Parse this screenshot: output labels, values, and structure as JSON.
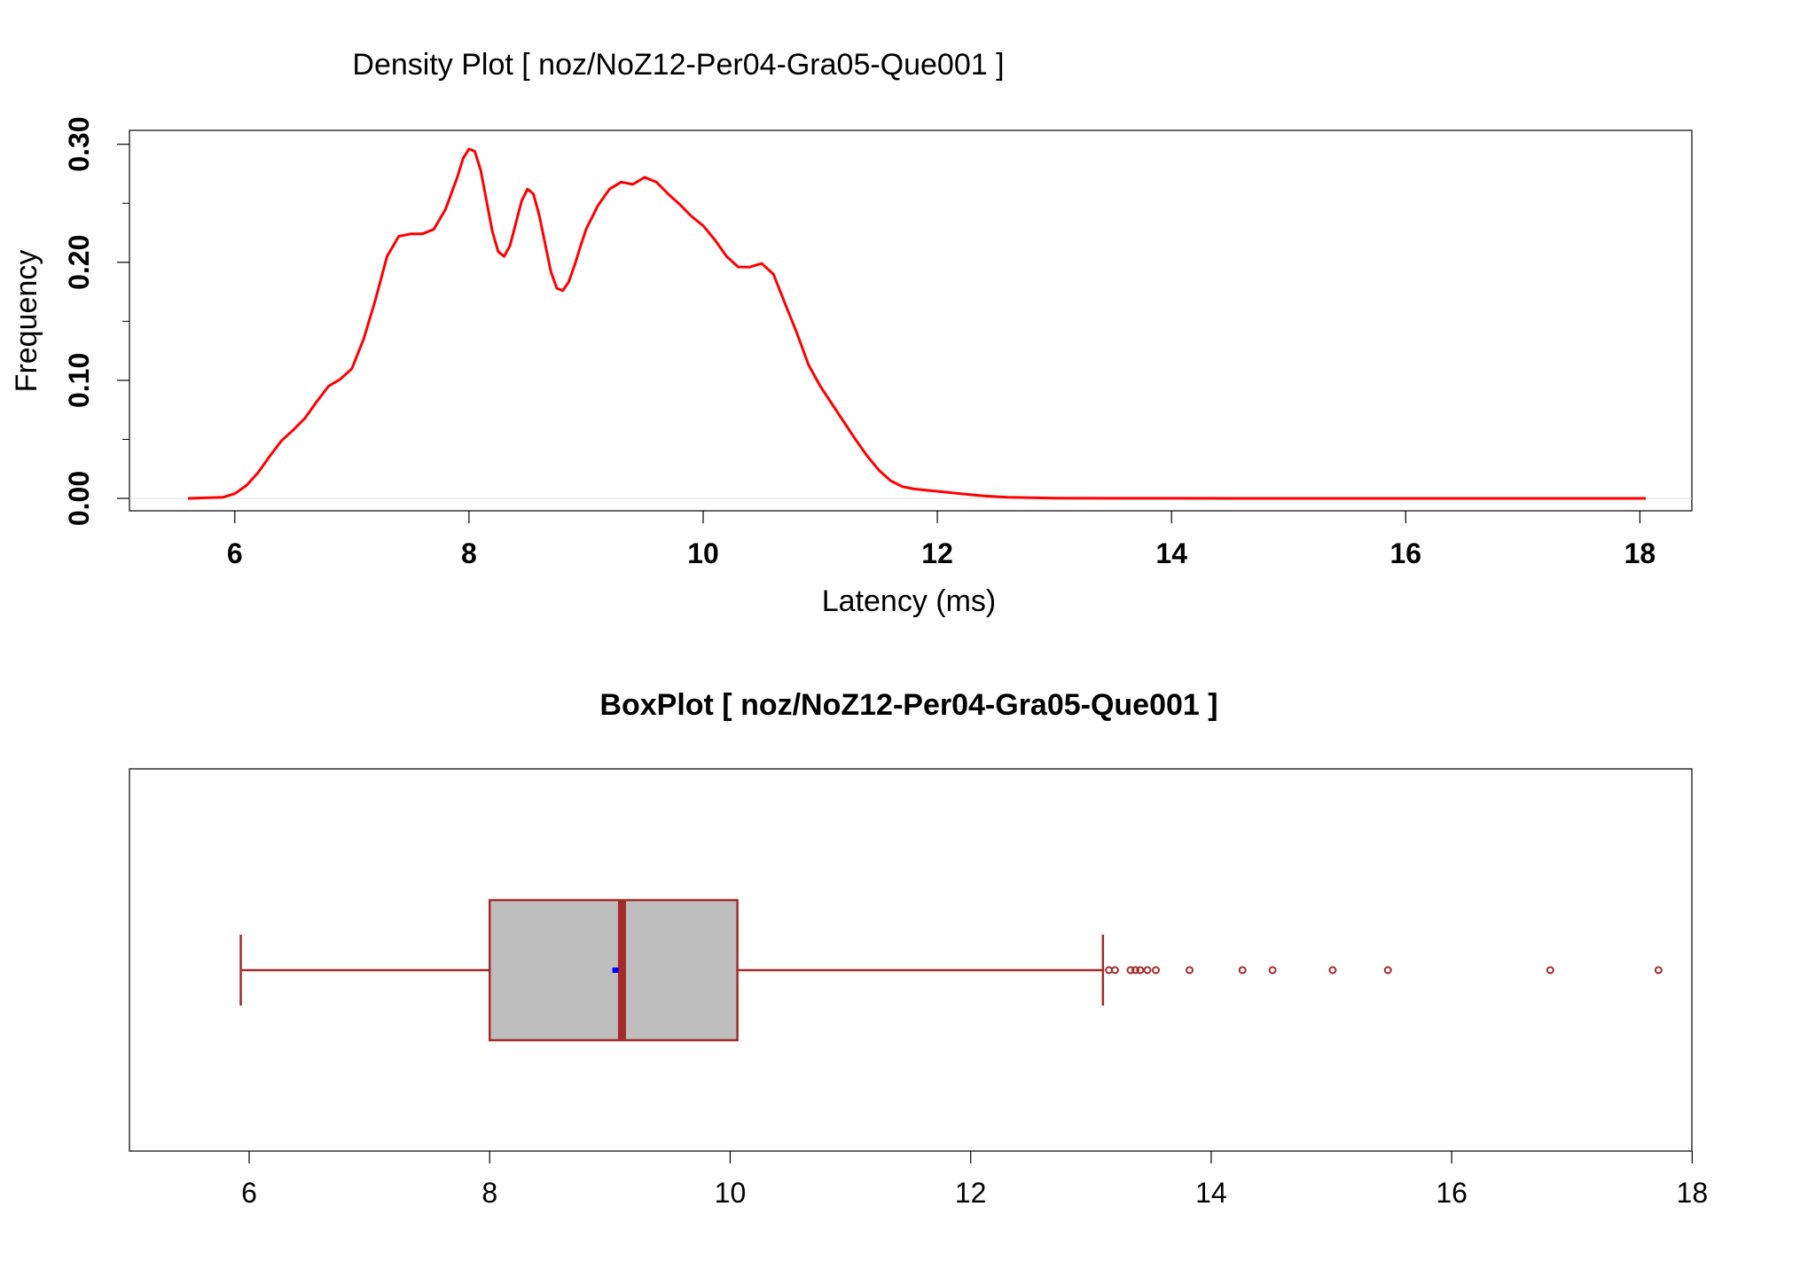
{
  "chart_data": [
    {
      "type": "line",
      "title": "Density Plot [ noz/NoZ12-Per04-Gra05-Que001 ]",
      "xlabel": "Latency (ms)",
      "ylabel": "Frequency",
      "xlim": [
        5.6,
        18.05
      ],
      "ylim": [
        0,
        0.305
      ],
      "x_ticks": [
        6,
        8,
        10,
        12,
        14,
        16,
        18
      ],
      "y_ticks": [
        0.0,
        0.1,
        0.2,
        0.3
      ],
      "y_tick_labels": [
        "0.00",
        "0.10",
        "0.20",
        "0.30"
      ],
      "y_minor_ticks": [
        0.05,
        0.15,
        0.25
      ],
      "grid": false,
      "line_color": "#ff0000",
      "baseline_color": "#dddddd",
      "series": [
        {
          "x": [
            5.6,
            5.9,
            6.0,
            6.1,
            6.2,
            6.3,
            6.4,
            6.5,
            6.6,
            6.7,
            6.8,
            6.9,
            7.0,
            7.1,
            7.2,
            7.3,
            7.4,
            7.5,
            7.6,
            7.7,
            7.8,
            7.9,
            7.95,
            8.0,
            8.05,
            8.1,
            8.15,
            8.2,
            8.25,
            8.3,
            8.35,
            8.4,
            8.45,
            8.5,
            8.55,
            8.6,
            8.65,
            8.7,
            8.75,
            8.8,
            8.85,
            8.9,
            8.95,
            9.0,
            9.1,
            9.2,
            9.3,
            9.4,
            9.5,
            9.6,
            9.7,
            9.8,
            9.9,
            10.0,
            10.1,
            10.2,
            10.3,
            10.4,
            10.5,
            10.6,
            10.7,
            10.8,
            10.9,
            11.0,
            11.1,
            11.2,
            11.3,
            11.4,
            11.5,
            11.6,
            11.7,
            11.8,
            11.9,
            12.0,
            12.2,
            12.4,
            12.6,
            12.8,
            13.0,
            13.5,
            14.0,
            15.0,
            16.0,
            17.0,
            18.05
          ],
          "y": [
            0.0,
            0.001,
            0.004,
            0.011,
            0.022,
            0.036,
            0.049,
            0.058,
            0.068,
            0.082,
            0.095,
            0.101,
            0.11,
            0.135,
            0.168,
            0.205,
            0.222,
            0.224,
            0.224,
            0.228,
            0.245,
            0.272,
            0.288,
            0.296,
            0.294,
            0.278,
            0.252,
            0.226,
            0.209,
            0.205,
            0.214,
            0.233,
            0.252,
            0.262,
            0.258,
            0.24,
            0.216,
            0.192,
            0.178,
            0.176,
            0.183,
            0.197,
            0.213,
            0.228,
            0.248,
            0.262,
            0.268,
            0.266,
            0.272,
            0.268,
            0.258,
            0.249,
            0.239,
            0.231,
            0.219,
            0.205,
            0.196,
            0.196,
            0.199,
            0.19,
            0.165,
            0.14,
            0.113,
            0.095,
            0.08,
            0.065,
            0.05,
            0.036,
            0.024,
            0.015,
            0.01,
            0.008,
            0.007,
            0.006,
            0.004,
            0.002,
            0.001,
            0.0005,
            0.0002,
            0.0001,
            0.0001,
            0.0,
            0.0,
            0.0,
            0.0
          ]
        }
      ]
    },
    {
      "type": "box",
      "title": "BoxPlot [ noz/NoZ12-Per04-Gra05-Que001 ]",
      "xlabel": "",
      "xlim": [
        5.55,
        17.85
      ],
      "x_ticks": [
        6,
        8,
        10,
        12,
        14,
        16,
        18
      ],
      "grid": false,
      "box_fill": "#bebebe",
      "box_border": "#a52a2a",
      "mean_color": "#0000ff",
      "stats": {
        "whisker_low": 5.93,
        "q1": 8.0,
        "median": 9.1,
        "q3": 10.06,
        "whisker_high": 13.1,
        "mean": 9.05,
        "outliers": [
          13.15,
          13.2,
          13.33,
          13.37,
          13.41,
          13.47,
          13.54,
          13.82,
          14.26,
          14.51,
          15.01,
          15.47,
          16.82,
          17.72
        ]
      }
    }
  ]
}
